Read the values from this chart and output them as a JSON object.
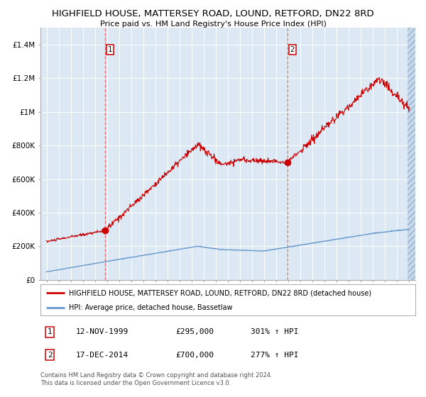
{
  "title": "HIGHFIELD HOUSE, MATTERSEY ROAD, LOUND, RETFORD, DN22 8RD",
  "subtitle": "Price paid vs. HM Land Registry's House Price Index (HPI)",
  "hpi_legend": "HPI: Average price, detached house, Bassetlaw",
  "house_legend": "HIGHFIELD HOUSE, MATTERSEY ROAD, LOUND, RETFORD, DN22 8RD (detached house)",
  "sale1_date": "12-NOV-1999",
  "sale1_price": 295000,
  "sale1_hpi": "301% ↑ HPI",
  "sale2_date": "17-DEC-2014",
  "sale2_price": 700000,
  "sale2_hpi": "277% ↑ HPI",
  "sale1_year": 1999.87,
  "sale2_year": 2014.96,
  "ylim_max": 1500000,
  "xlim_min": 1994.5,
  "xlim_max": 2025.5,
  "background_color": "#dce9f5",
  "red_line_color": "#cc0000",
  "blue_line_color": "#6699cc",
  "dashed_line_color": "#dd6666",
  "grid_color": "#ffffff",
  "footer_text": "Contains HM Land Registry data © Crown copyright and database right 2024.\nThis data is licensed under the Open Government Licence v3.0.",
  "ylabel_ticks": [
    "£0",
    "£200K",
    "£400K",
    "£600K",
    "£800K",
    "£1M",
    "£1.2M",
    "£1.4M"
  ],
  "ylabel_vals": [
    0,
    200000,
    400000,
    600000,
    800000,
    1000000,
    1200000,
    1400000
  ]
}
